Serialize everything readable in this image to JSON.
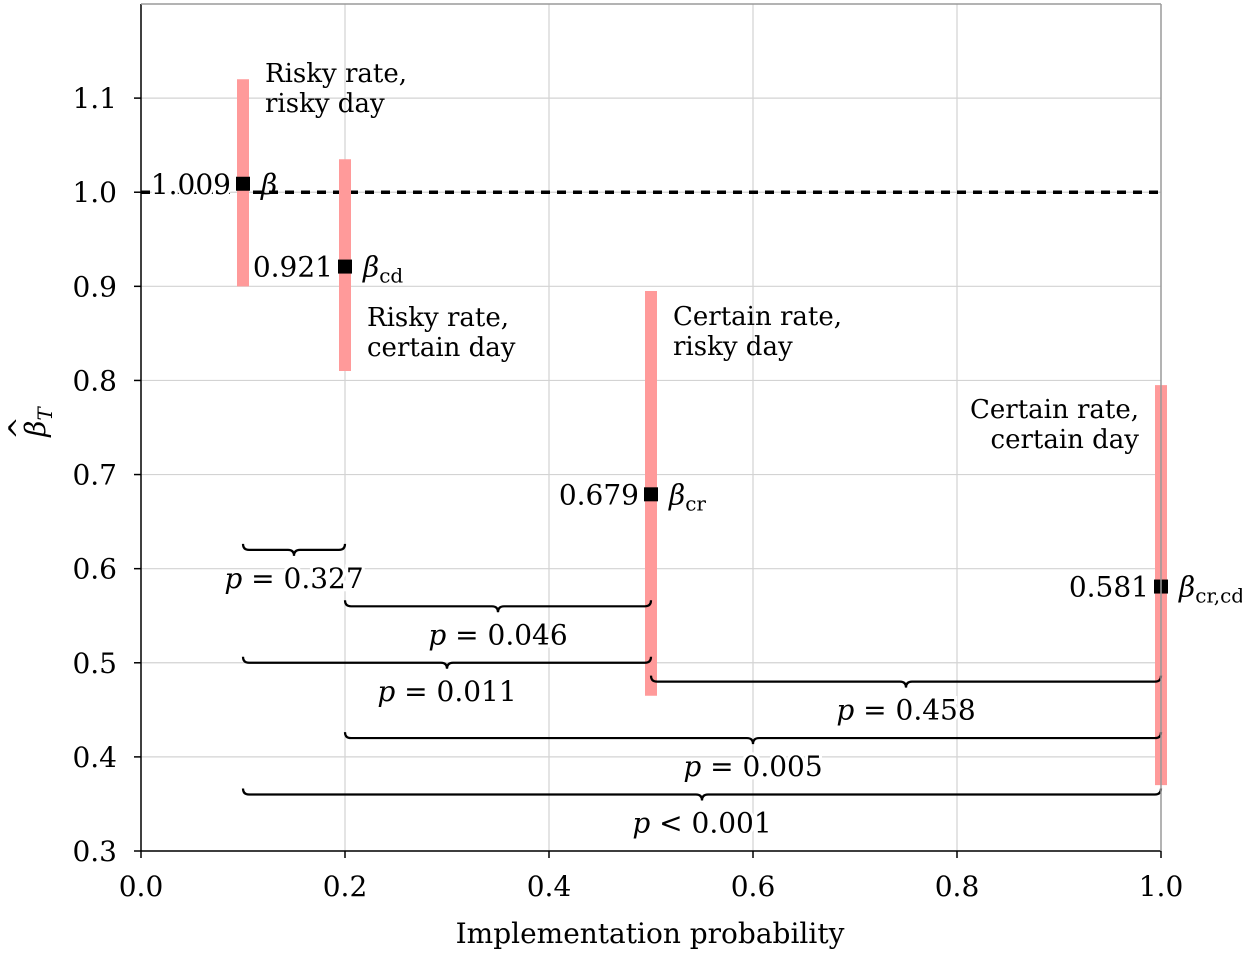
{
  "chart_data": {
    "type": "errorbar",
    "xlabel": "Implementation probability",
    "ylabel": "β̂_T",
    "xlim": [
      0.0,
      1.0
    ],
    "ylim": [
      0.3,
      1.2
    ],
    "xticks": [
      0.0,
      0.2,
      0.4,
      0.6,
      0.8,
      1.0
    ],
    "xtick_labels": [
      "0.0",
      "0.2",
      "0.4",
      "0.6",
      "0.8",
      "1.0"
    ],
    "yticks": [
      0.3,
      0.4,
      0.5,
      0.6,
      0.7,
      0.8,
      0.9,
      1.0,
      1.1
    ],
    "ytick_labels": [
      "0.3",
      "0.4",
      "0.5",
      "0.6",
      "0.7",
      "0.8",
      "0.9",
      "1.0",
      "1.1"
    ],
    "grid": true,
    "reference_line": 1.0,
    "points": [
      {
        "x": 0.1,
        "y": 1.009,
        "lo": 0.9,
        "hi": 1.12,
        "value_label": "1.009",
        "beta": "β",
        "beta_sub": "",
        "annotation": [
          "Risky rate,",
          "risky day"
        ]
      },
      {
        "x": 0.2,
        "y": 0.921,
        "lo": 0.81,
        "hi": 1.035,
        "value_label": "0.921",
        "beta": "β",
        "beta_sub": "cd",
        "annotation": [
          "Risky rate,",
          "certain day"
        ]
      },
      {
        "x": 0.5,
        "y": 0.679,
        "lo": 0.465,
        "hi": 0.895,
        "value_label": "0.679",
        "beta": "β",
        "beta_sub": "cr",
        "annotation": [
          "Certain rate,",
          "risky day"
        ]
      },
      {
        "x": 1.0,
        "y": 0.581,
        "lo": 0.37,
        "hi": 0.795,
        "value_label": "0.581",
        "beta": "β",
        "beta_sub": "cr,cd",
        "annotation": [
          "Certain rate,",
          "certain day"
        ]
      }
    ],
    "comparisons": [
      {
        "x1": 0.1,
        "x2": 0.2,
        "y": 0.62,
        "label": "p = 0.327"
      },
      {
        "x1": 0.2,
        "x2": 0.5,
        "y": 0.56,
        "label": "p = 0.046"
      },
      {
        "x1": 0.1,
        "x2": 0.5,
        "y": 0.5,
        "label": "p = 0.011"
      },
      {
        "x1": 0.5,
        "x2": 1.0,
        "y": 0.48,
        "label": "p = 0.458"
      },
      {
        "x1": 0.2,
        "x2": 1.0,
        "y": 0.42,
        "label": "p = 0.005"
      },
      {
        "x1": 0.1,
        "x2": 1.0,
        "y": 0.36,
        "label": "p < 0.001"
      }
    ],
    "colors": {
      "errorbar": "#ff9a9a",
      "marker": "#000000",
      "grid": "#d3d3d3"
    }
  }
}
